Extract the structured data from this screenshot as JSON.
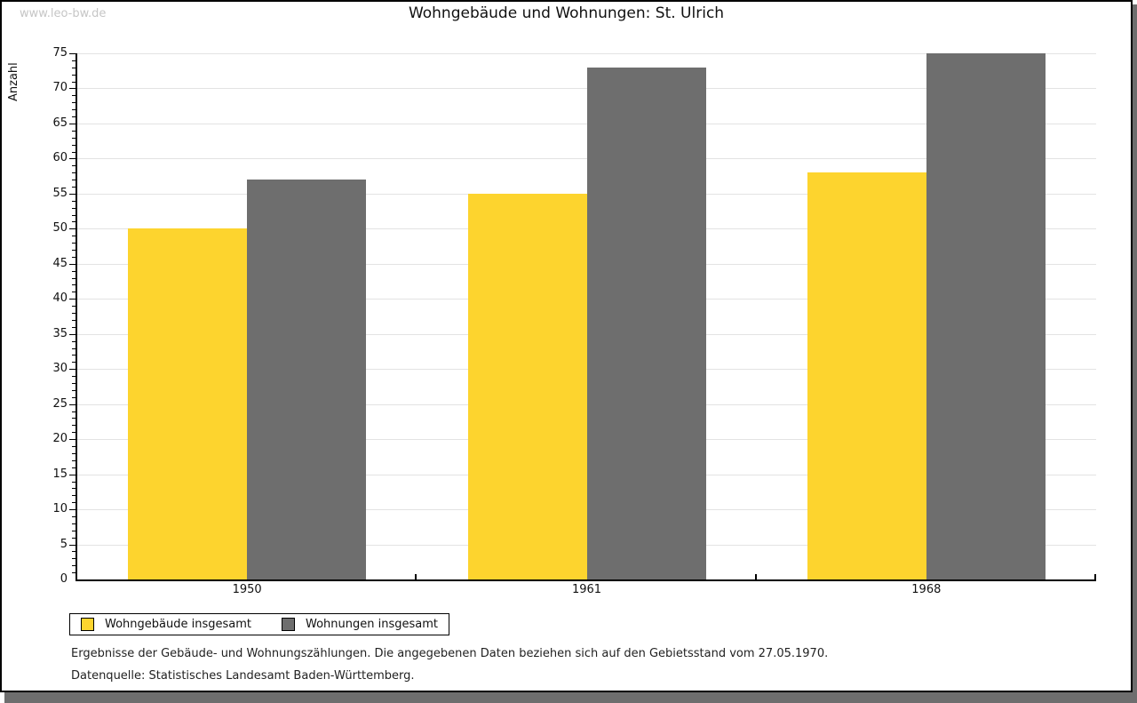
{
  "watermark": "www.leo-bw.de",
  "chart_data": {
    "type": "bar",
    "title": "Wohngebäude und Wohnungen: St. Ulrich",
    "xlabel": "",
    "ylabel": "Anzahl",
    "categories": [
      "1950",
      "1961",
      "1968"
    ],
    "series": [
      {
        "name": "Wohngebäude insgesamt",
        "color": "#fdd42e",
        "values": [
          50,
          55,
          58
        ]
      },
      {
        "name": "Wohnungen insgesamt",
        "color": "#6e6e6e",
        "values": [
          57,
          73,
          75
        ]
      }
    ],
    "ylim": [
      0,
      75
    ],
    "y_major_step": 5,
    "y_minor_step": 1,
    "y_tick_labels": [
      0,
      5,
      10,
      15,
      20,
      25,
      30,
      35,
      40,
      45,
      50,
      55,
      60,
      65,
      70,
      75
    ],
    "grid": "horizontal",
    "legend_position": "below-left"
  },
  "legend": {
    "items": [
      {
        "label": "Wohngebäude insgesamt",
        "color": "#fdd42e"
      },
      {
        "label": "Wohnungen insgesamt",
        "color": "#6e6e6e"
      }
    ]
  },
  "footnotes": {
    "line1": "Ergebnisse der Gebäude- und Wohnungszählungen. Die angegebenen Daten beziehen sich auf den Gebietsstand vom 27.05.1970.",
    "line2": "Datenquelle: Statistisches Landesamt Baden-Württemberg."
  },
  "colors": {
    "frame_border": "#000000",
    "shadow": "#6e6e6e",
    "gridline": "#e3e3e3",
    "watermark": "#c6c6c6",
    "bar_yellow": "#fdd42e",
    "bar_gray": "#6e6e6e"
  }
}
